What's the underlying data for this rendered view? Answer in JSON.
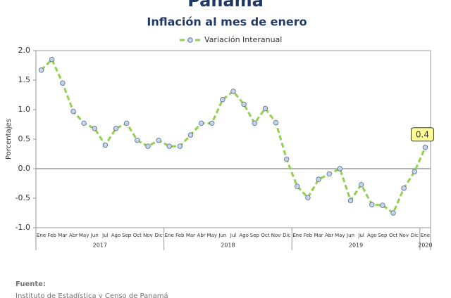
{
  "chart_data": {
    "type": "line",
    "title": "Panamá",
    "subtitle": "Inflación al mes de enero",
    "y_label": "Porcentajes",
    "categories": [
      "Ene",
      "Feb",
      "Mar",
      "Abr",
      "May",
      "Jun",
      "Jul",
      "Ago",
      "Sep",
      "Oct",
      "Nov",
      "Dic",
      "Ene",
      "Feb",
      "Mar",
      "Abr",
      "May",
      "Jun",
      "Jul",
      "Ago",
      "Sep",
      "Oct",
      "Nov",
      "Dic",
      "Ene",
      "Feb",
      "Mar",
      "Abr",
      "May",
      "Jun",
      "Jul",
      "Ago",
      "Sep",
      "Oct",
      "Nov",
      "Dic",
      "Ene"
    ],
    "years": [
      "2017",
      "2018",
      "2019",
      "2020"
    ],
    "series": [
      {
        "name": "Variación Interanual",
        "color": "#92d050",
        "values": [
          1.67,
          1.85,
          1.45,
          0.97,
          0.77,
          0.68,
          0.4,
          0.68,
          0.77,
          0.48,
          0.38,
          0.48,
          0.38,
          0.38,
          0.57,
          0.77,
          0.77,
          1.17,
          1.31,
          1.09,
          0.77,
          1.02,
          0.78,
          0.16,
          -0.3,
          -0.49,
          -0.18,
          -0.09,
          0.0,
          -0.54,
          -0.27,
          -0.61,
          -0.62,
          -0.75,
          -0.33,
          -0.05,
          0.36
        ],
        "value_labels": [
          null,
          null,
          null,
          null,
          null,
          null,
          null,
          null,
          null,
          null,
          null,
          null,
          null,
          null,
          null,
          null,
          null,
          null,
          null,
          null,
          null,
          null,
          null,
          null,
          null,
          null,
          null,
          null,
          null,
          null,
          null,
          null,
          null,
          null,
          null,
          null,
          "0.4"
        ]
      }
    ],
    "ylim": [
      -1.0,
      2.0
    ],
    "yticks": [
      {
        "value": 2.0,
        "label": "2.0"
      },
      1.5,
      {
        "value": 1.0,
        "label": "1.0"
      },
      0.5,
      {
        "value": 0.0,
        "label": "0.0"
      },
      -0.5,
      {
        "value": -1.0,
        "label": "-1.0"
      }
    ],
    "zero_line": true,
    "legend": "top"
  },
  "footer": {
    "label": "Fuente:",
    "source": "Instituto de Estadística y Censo de Panamá"
  }
}
